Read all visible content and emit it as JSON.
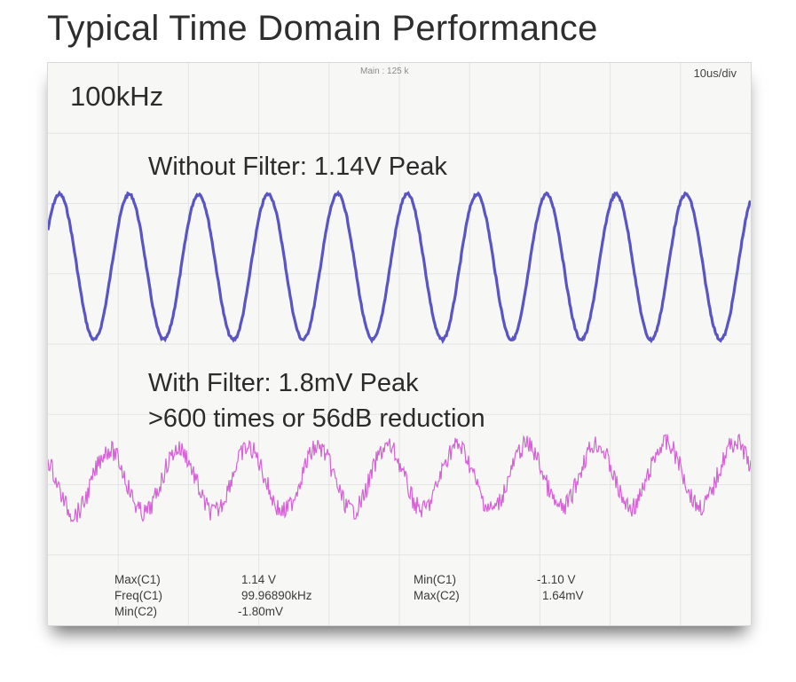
{
  "page": {
    "title": "Typical Time Domain Performance"
  },
  "scope": {
    "frequency_label": "100kHz",
    "main_label": "Main : 125 k",
    "timebase": "10us/div"
  },
  "annotations": {
    "without_filter": "Without Filter: 1.14V Peak",
    "with_filter": "With Filter: 1.8mV Peak",
    "reduction": ">600 times or 56dB reduction"
  },
  "measurements": {
    "max_c1_label": "Max(C1)",
    "max_c1_value": "1.14 V",
    "freq_c1_label": "Freq(C1)",
    "freq_c1_value": "99.96890kHz",
    "min_c2_label": "Min(C2)",
    "min_c2_value": "-1.80mV",
    "min_c1_label": "Min(C1)",
    "min_c1_value": "-1.10 V",
    "max_c2_label": "Max(C2)",
    "max_c2_value": "1.64mV"
  },
  "chart_data": {
    "type": "line",
    "title": "",
    "xlabel": "",
    "ylabel": "",
    "grid": true,
    "x_divisions": 10,
    "x_per_div_us": 10,
    "series": [
      {
        "name": "C1",
        "color": "#5a54c4",
        "frequency_khz": 99.9689,
        "max": 1.14,
        "min": -1.1,
        "unit": "V",
        "cycles": 10
      },
      {
        "name": "C2",
        "color": "#d860d8",
        "frequency_khz": 100,
        "max": 1.64,
        "min": -1.8,
        "unit": "mV",
        "cycles": 10
      }
    ]
  }
}
